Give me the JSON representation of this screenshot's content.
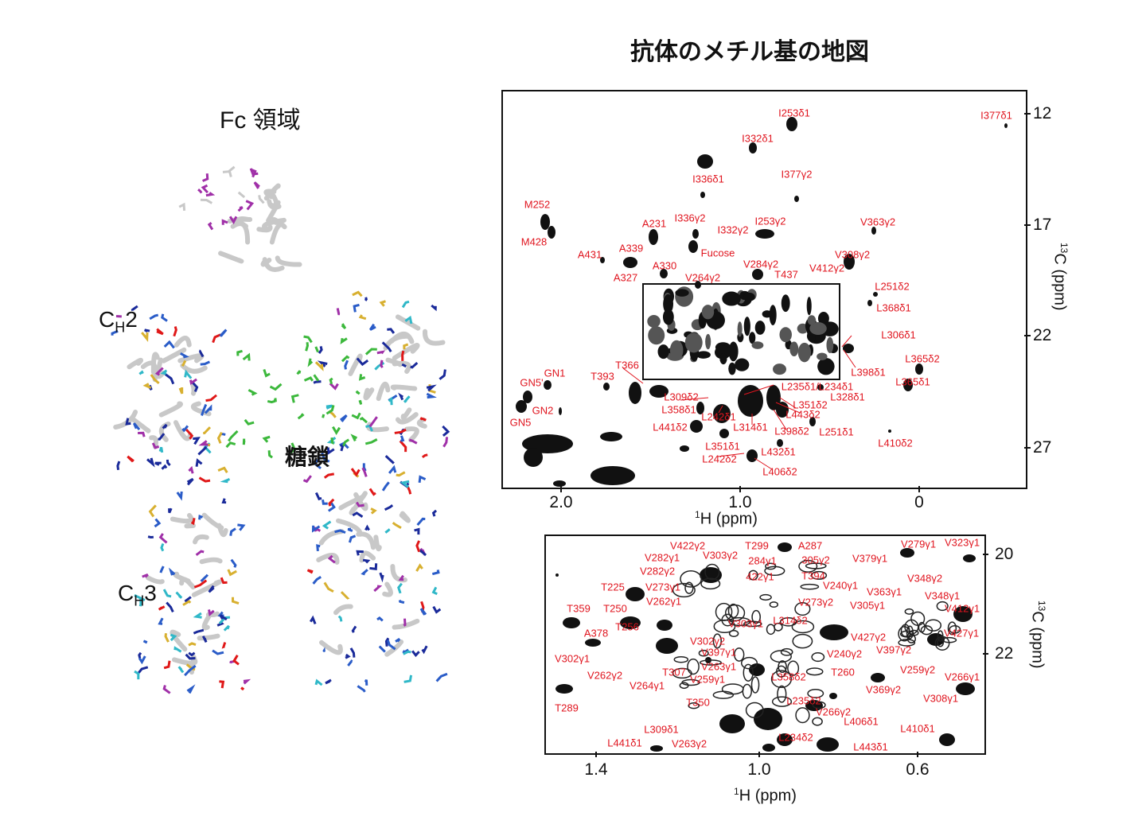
{
  "title": "抗体のメチル基の地図",
  "structure": {
    "title": "Fc 領域",
    "ch2_main": "C",
    "ch2_sub": "H",
    "ch2_tail": "2",
    "ch3_main": "C",
    "ch3_sub": "H",
    "ch3_tail": "3",
    "glycan": "糖鎖"
  },
  "colors": {
    "label": "#e0141e",
    "glycan": "#3cb83c",
    "helix_blue": "#2a5cc8",
    "magenta": "#a030a8",
    "cyan": "#30b8c8"
  },
  "top_spectrum": {
    "x_ticks": [
      "2.0",
      "1.0",
      "0"
    ],
    "y_ticks": [
      "12",
      "17",
      "22",
      "27"
    ],
    "x_title_sup": "1",
    "x_title": "H (ppm)",
    "y_title_sup": "13",
    "y_title": "C (ppm)",
    "labels": [
      "I253δ1",
      "I377δ1",
      "I332δ1",
      "I336δ1",
      "I377γ2",
      "M252",
      "A231",
      "I336γ2",
      "I332γ2",
      "I253γ2",
      "V363γ2",
      "M428",
      "A431",
      "A339",
      "Fucose",
      "V308γ2",
      "A330",
      "V284γ2",
      "V412γ2",
      "T437",
      "A327",
      "V264γ2",
      "L251δ2",
      "L368δ1",
      "L306δ1",
      "L365δ2",
      "T366",
      "GN1",
      "L398δ1",
      "T393",
      "GN5'",
      "L365δ1",
      "L235δ1/L234δ1",
      "L309δ2",
      "L328δ1",
      "L351δ2",
      "GN2",
      "L358δ1",
      "L443δ2",
      "L242δ1",
      "GN5",
      "L441δ2",
      "L314δ1",
      "L398δ2",
      "L251δ1",
      "L410δ2",
      "L351δ1",
      "L432δ1",
      "L242δ2",
      "L406δ2"
    ]
  },
  "bottom_spectrum": {
    "x_ticks": [
      "1.4",
      "1.0",
      "0.6"
    ],
    "y_ticks": [
      "20",
      "22"
    ],
    "x_title_sup": "1",
    "x_title": "H (ppm)",
    "y_title_sup": "13",
    "y_title": "C (ppm)",
    "labels": [
      "V422γ2",
      "T299",
      "A287",
      "V279γ1",
      "V323γ1",
      "V282γ1",
      "V303γ2",
      "284γ1",
      "305γ2",
      "V379γ1",
      "V282γ2",
      "422γ1",
      "T394",
      "V348γ2",
      "T225",
      "V273γ1",
      "V240γ1",
      "V363γ1",
      "V348γ1",
      "V262γ1",
      "V273γ2",
      "V305γ1",
      "T359",
      "T250",
      "V412γ1",
      "T256",
      "V303γ1",
      "L314δ2",
      "A378",
      "V427γ2",
      "V427γ1",
      "V302γ2",
      "V397γ1",
      "V397γ2",
      "V302γ1",
      "V240γ2",
      "V263γ1",
      "T307",
      "L358δ2",
      "T260",
      "V259γ2",
      "V262γ2",
      "V259γ1",
      "V266γ1",
      "V264γ1",
      "V369γ2",
      "T289",
      "V308γ1",
      "T350",
      "L235δ2",
      "V266γ2",
      "L406δ1",
      "L309δ1",
      "L410δ1",
      "L234δ2",
      "L441δ1",
      "V263γ2",
      "L443δ1"
    ]
  }
}
